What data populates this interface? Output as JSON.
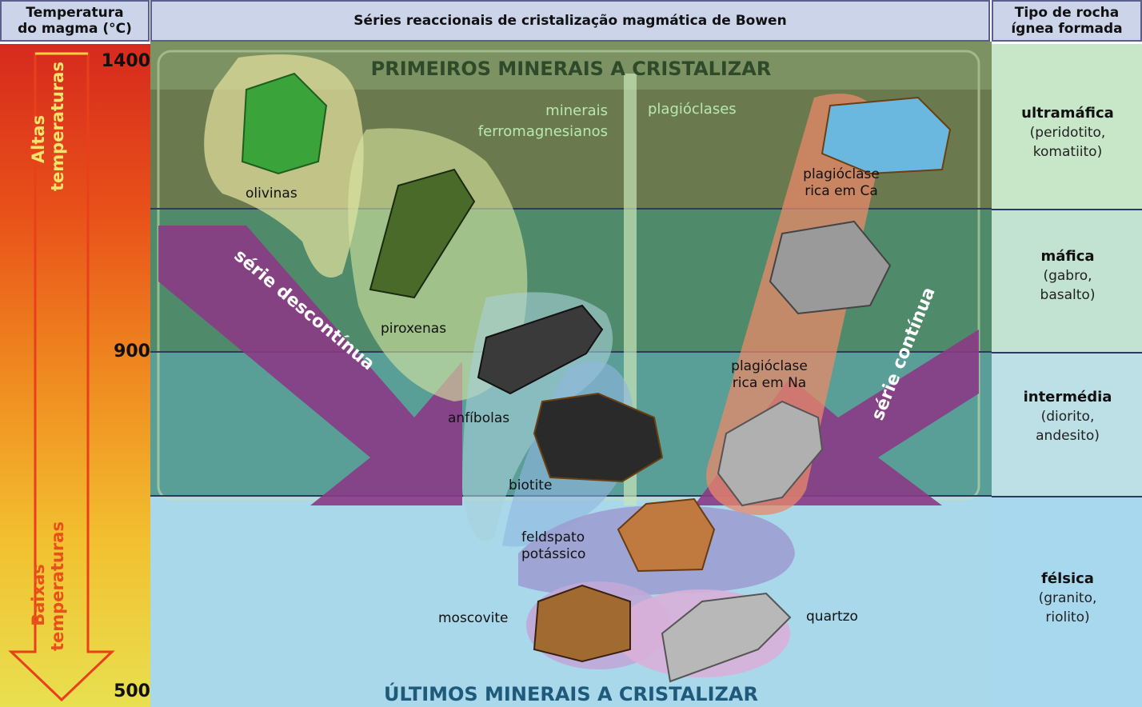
{
  "headers": {
    "temperature": "Temperatura do magma (°C)",
    "series": "Séries reaccionais de cristalização magmática de Bowen",
    "rock_type": "Tipo de rocha ígnea formada"
  },
  "temperature_scale": {
    "ticks": [
      "1400",
      "900",
      "500"
    ],
    "high_label": "Altas temperaturas",
    "low_label": "Baixas temperaturas"
  },
  "titles": {
    "first": "PRIMEIROS MINERAIS A CRISTALIZAR",
    "last": "ÚLTIMOS MINERAIS A CRISTALIZAR"
  },
  "groups": {
    "ferromagnesian": "minerais ferromagnesianos",
    "plagioclase": "plagióclases"
  },
  "series_labels": {
    "discontinuous": "série descontínua",
    "continuous": "série contínua"
  },
  "minerals": {
    "olivine": "olivinas",
    "pyroxene": "piroxenas",
    "amphibole": "anfíbolas",
    "biotite": "biotite",
    "plag_ca": "plagióclase rica em Ca",
    "plag_na": "plagióclase rica em Na",
    "k_feldspar": "feldspato potássico",
    "muscovite": "moscovite",
    "quartz": "quartzo"
  },
  "rock_types": [
    {
      "name": "ultramáfica",
      "examples": "(peridotito, komatiito)"
    },
    {
      "name": "máfica",
      "examples": "(gabro, basalto)"
    },
    {
      "name": "intermédia",
      "examples": "(diorito, andesito)"
    },
    {
      "name": "félsica",
      "examples": "(granito, riolito)"
    }
  ],
  "colors": {
    "band_1": "#6b7a4e",
    "band_2": "#4f8a6a",
    "band_3": "#5a9e98",
    "band_4": "#a8d8ea",
    "arrow_series": "#8a3a86",
    "title_first": "#2f4a2a",
    "title_last": "#1f5a7a"
  }
}
